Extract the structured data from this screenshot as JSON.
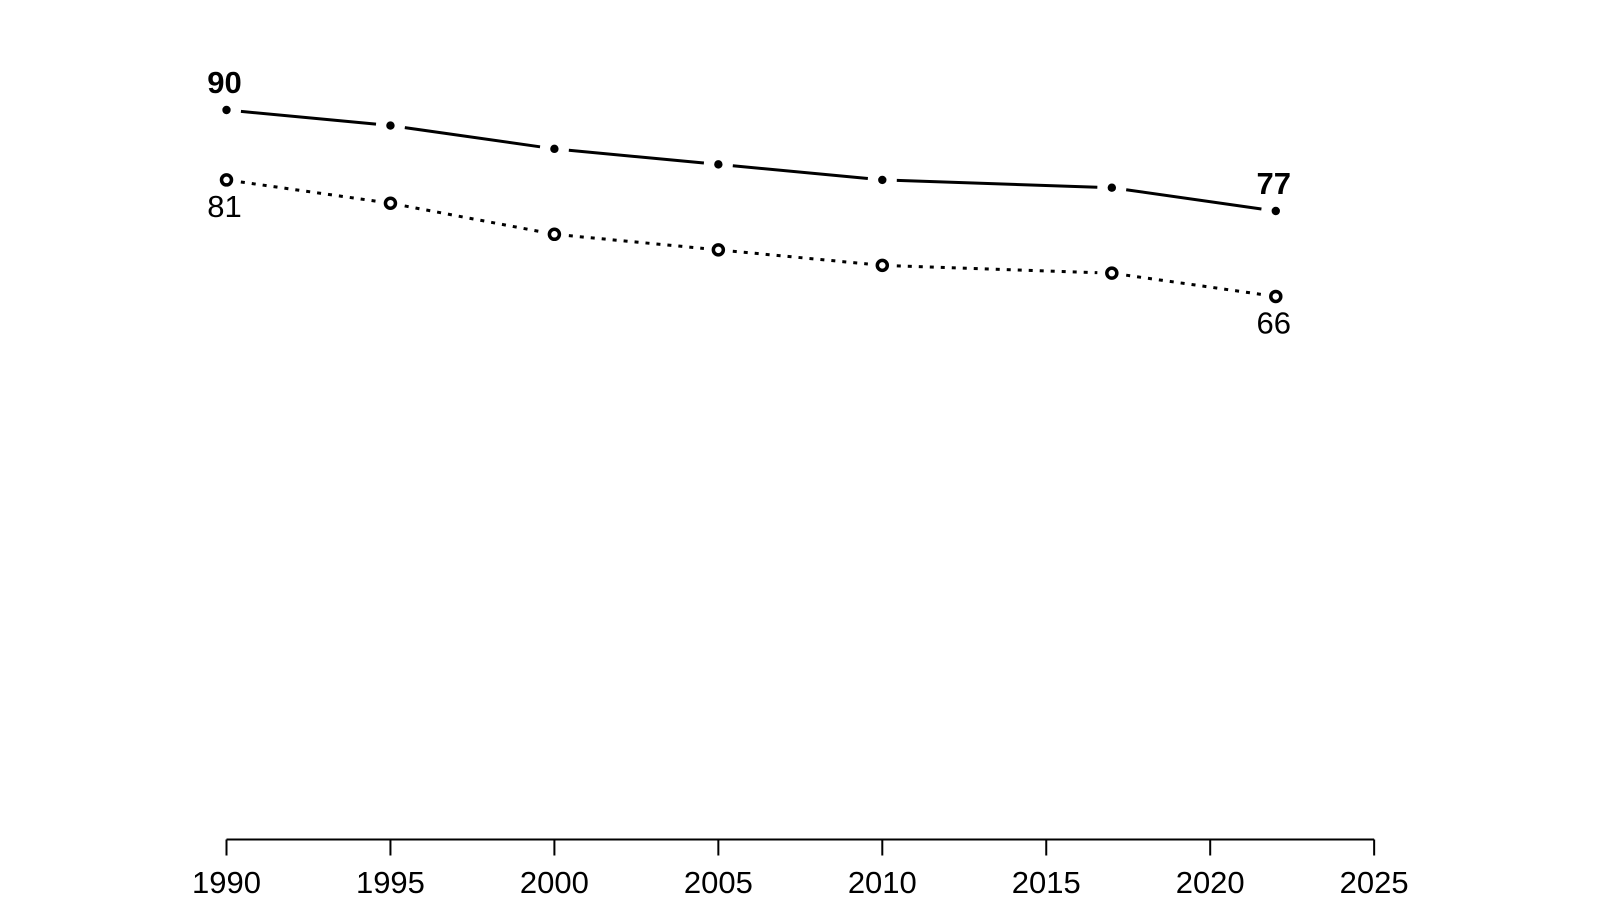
{
  "page": {
    "background": "#ffffff"
  },
  "chart_data": {
    "type": "line",
    "title": "",
    "xlabel": "",
    "ylabel": "",
    "grid": false,
    "y_axis_visible": false,
    "legend": null,
    "x": [
      1990,
      1995,
      2000,
      2005,
      2010,
      2017,
      2022
    ],
    "xticks": [
      "1990",
      "1995",
      "2000",
      "2005",
      "2010",
      "2015",
      "2020",
      "2025"
    ],
    "xtick_years": [
      1990,
      1995,
      2000,
      2005,
      2010,
      2015,
      2020,
      2025
    ],
    "xlim": [
      1990,
      2025
    ],
    "ylim": [
      60,
      95
    ],
    "series": [
      {
        "name": "solid-series",
        "line_style": "solid",
        "marker": "filled-circle",
        "color": "#000000",
        "values": [
          90,
          88,
          85,
          83,
          81,
          80,
          77
        ],
        "start_label": "90",
        "end_label": "77",
        "label_weight": "bold",
        "label_side": "above"
      },
      {
        "name": "dotted-series",
        "line_style": "dotted",
        "marker": "open-circle",
        "color": "#000000",
        "values": [
          81,
          78,
          74,
          72,
          70,
          69,
          66
        ],
        "start_label": "81",
        "end_label": "66",
        "label_weight": "normal",
        "label_side": "below"
      }
    ]
  }
}
